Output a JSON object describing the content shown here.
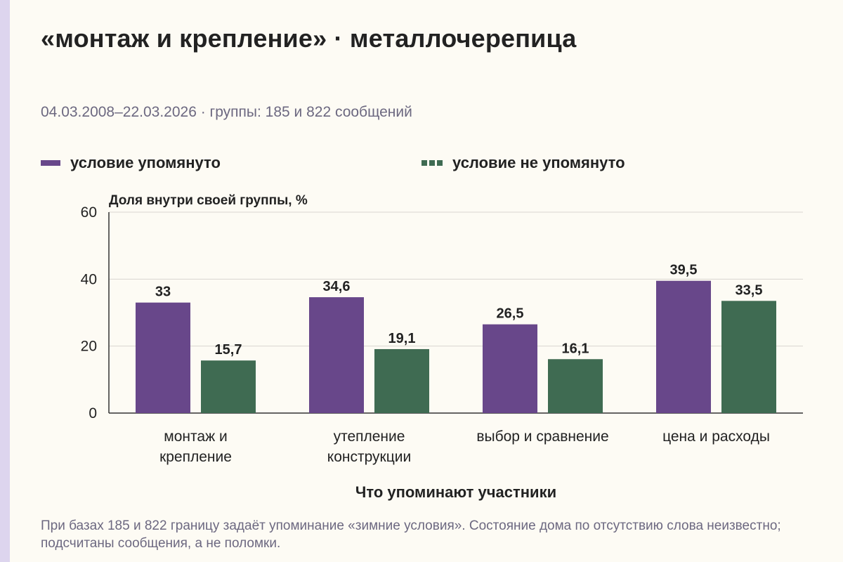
{
  "header": {
    "title": "«монтаж и крепление» · металлочерепица",
    "subtitle": "04.03.2008–22.03.2026 · группы: 185 и 822 сообщений"
  },
  "legend": {
    "mentioned": "условие упомянуто",
    "not_mentioned": "условие не упомянуто"
  },
  "footer": {
    "note": "При базах 185 и 822 границу задаёт упоминание «зимние условия». Состояние дома по отсутствию слова неизвестно; подсчитаны сообщения, а не поломки."
  },
  "colors": {
    "mentioned": "#68478a",
    "not_mentioned": "#3f6b52",
    "grid": "#d9d6cf",
    "axis": "#333333"
  },
  "chart_data": {
    "type": "bar",
    "ylabel": "Доля внутри своей группы, %",
    "xlabel": "Что упоминают участники",
    "ylim": [
      0,
      60
    ],
    "yticks": [
      "0",
      "20",
      "40",
      "60"
    ],
    "grid": true,
    "legend_position": "top",
    "categories": [
      [
        "монтаж и",
        "крепление"
      ],
      [
        "утепление",
        "конструкции"
      ],
      [
        "выбор и сравнение"
      ],
      [
        "цена и расходы"
      ]
    ],
    "series": [
      {
        "name": "условие упомянуто",
        "values": [
          33,
          34.6,
          26.5,
          39.5
        ],
        "labels": [
          "33",
          "34,6",
          "26,5",
          "39,5"
        ]
      },
      {
        "name": "условие не упомянуто",
        "values": [
          15.7,
          19.1,
          16.1,
          33.5
        ],
        "labels": [
          "15,7",
          "19,1",
          "16,1",
          "33,5"
        ]
      }
    ]
  }
}
